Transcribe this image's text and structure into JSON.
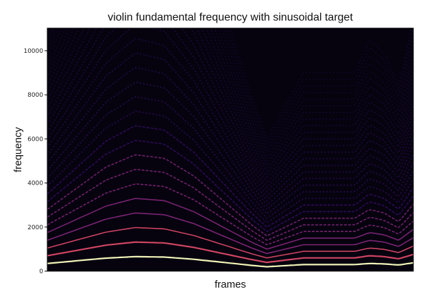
{
  "chart_data": {
    "type": "heatmap",
    "title": "violin fundamental frequency with sinusoidal target",
    "xlabel": "frames",
    "ylabel": "frequency",
    "ylim": [
      0,
      11025
    ],
    "yticks": [
      "0",
      "2000",
      "4000",
      "6000",
      "8000",
      "10000"
    ],
    "ytick_values": [
      0,
      2000,
      4000,
      6000,
      8000,
      10000
    ],
    "xticks_shown": false,
    "colormap": "magma",
    "colors": {
      "background": "#06030f",
      "low": "#3b0f70",
      "mid": "#8c2981",
      "high": "#de4968",
      "peak": "#fcfdbf"
    },
    "fundamental_track": {
      "description_free": true,
      "frames_fraction": [
        0.0,
        0.08,
        0.16,
        0.24,
        0.32,
        0.4,
        0.48,
        0.56,
        0.6,
        0.64,
        0.7,
        0.76,
        0.8,
        0.84,
        0.88,
        0.92,
        0.96,
        1.0
      ],
      "f0_hz": [
        350,
        470,
        590,
        660,
        640,
        540,
        400,
        260,
        200,
        240,
        300,
        300,
        300,
        300,
        350,
        330,
        280,
        380
      ]
    }
  }
}
